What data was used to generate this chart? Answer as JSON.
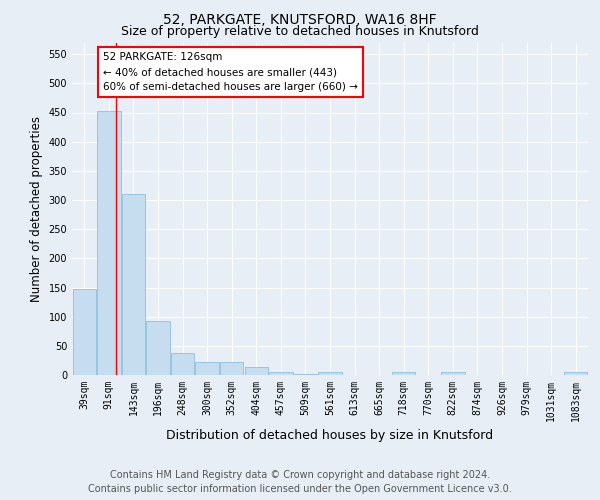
{
  "title": "52, PARKGATE, KNUTSFORD, WA16 8HF",
  "subtitle": "Size of property relative to detached houses in Knutsford",
  "xlabel": "Distribution of detached houses by size in Knutsford",
  "ylabel": "Number of detached properties",
  "categories": [
    "39sqm",
    "91sqm",
    "143sqm",
    "196sqm",
    "248sqm",
    "300sqm",
    "352sqm",
    "404sqm",
    "457sqm",
    "509sqm",
    "561sqm",
    "613sqm",
    "665sqm",
    "718sqm",
    "770sqm",
    "822sqm",
    "874sqm",
    "926sqm",
    "979sqm",
    "1031sqm",
    "1083sqm"
  ],
  "values": [
    148,
    453,
    310,
    93,
    38,
    22,
    22,
    14,
    5,
    1,
    6,
    0,
    0,
    6,
    0,
    6,
    0,
    0,
    0,
    0,
    5
  ],
  "bar_color": "#c6ddf0",
  "bar_edge_color": "#7db8d8",
  "annotation_box_text": [
    "52 PARKGATE: 126sqm",
    "← 40% of detached houses are smaller (443)",
    "60% of semi-detached houses are larger (660) →"
  ],
  "footer_line1": "Contains HM Land Registry data © Crown copyright and database right 2024.",
  "footer_line2": "Contains public sector information licensed under the Open Government Licence v3.0.",
  "ylim": [
    0,
    570
  ],
  "yticks": [
    0,
    50,
    100,
    150,
    200,
    250,
    300,
    350,
    400,
    450,
    500,
    550
  ],
  "bg_color": "#e8eef5",
  "plot_bg_color": "#e8eef5",
  "grid_color": "#ffffff",
  "title_fontsize": 10,
  "subtitle_fontsize": 9,
  "axis_label_fontsize": 8.5,
  "tick_fontsize": 7,
  "footer_fontsize": 7,
  "red_line_x": 1.3
}
